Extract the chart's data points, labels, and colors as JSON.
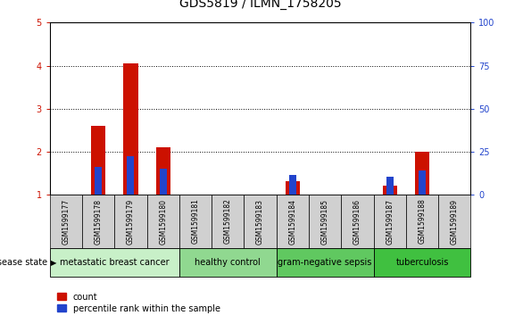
{
  "title": "GDS5819 / ILMN_1758205",
  "samples": [
    "GSM1599177",
    "GSM1599178",
    "GSM1599179",
    "GSM1599180",
    "GSM1599181",
    "GSM1599182",
    "GSM1599183",
    "GSM1599184",
    "GSM1599185",
    "GSM1599186",
    "GSM1599187",
    "GSM1599188",
    "GSM1599189"
  ],
  "red_values": [
    1.0,
    2.6,
    4.05,
    2.1,
    1.0,
    1.0,
    1.0,
    1.3,
    1.0,
    1.0,
    1.2,
    2.0,
    1.0
  ],
  "blue_values": [
    1.0,
    1.65,
    1.9,
    1.6,
    1.0,
    1.0,
    1.0,
    1.45,
    1.0,
    1.0,
    1.42,
    1.55,
    1.0
  ],
  "ylim": [
    1,
    5
  ],
  "yticks": [
    1,
    2,
    3,
    4,
    5
  ],
  "yticks_right": [
    0,
    25,
    50,
    75,
    100
  ],
  "disease_groups": [
    {
      "label": "metastatic breast cancer",
      "start": 0,
      "end": 4,
      "color": "#c8f0c8"
    },
    {
      "label": "healthy control",
      "start": 4,
      "end": 7,
      "color": "#90d890"
    },
    {
      "label": "gram-negative sepsis",
      "start": 7,
      "end": 10,
      "color": "#60c860"
    },
    {
      "label": "tuberculosis",
      "start": 10,
      "end": 13,
      "color": "#40c040"
    }
  ],
  "bar_width": 0.45,
  "blue_bar_width": 0.22,
  "red_color": "#cc1100",
  "blue_color": "#2244cc",
  "sample_bg_color": "#d0d0d0",
  "plot_bg": "#ffffff",
  "left_tick_color": "#cc1100",
  "right_tick_color": "#2244cc",
  "title_fontsize": 10,
  "tick_fontsize": 7,
  "sample_fontsize": 5.5,
  "disease_fontsize": 7,
  "legend_fontsize": 7
}
